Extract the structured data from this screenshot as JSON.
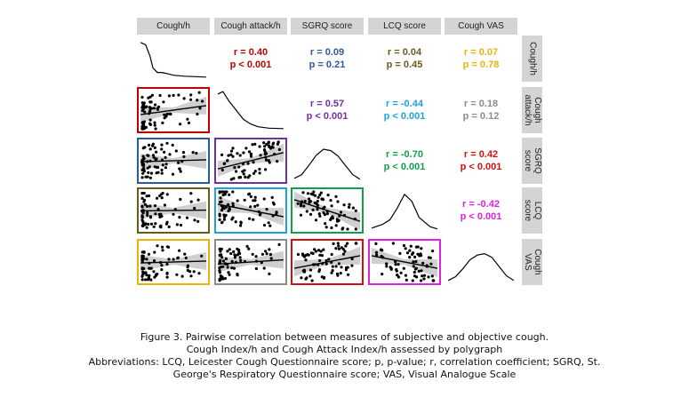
{
  "chart_data": {
    "type": "scatter",
    "variables": [
      "Cough/h",
      "Cough attack/h",
      "SGRQ score",
      "LCQ score",
      "Cough VAS"
    ],
    "row_labels": [
      "Cough/h",
      "Cough\nattack/h",
      "SGRQ\nscore",
      "LCQ\nscore",
      "Cough\nVAS"
    ],
    "correlations": [
      {
        "row": 0,
        "col": 1,
        "r": "r = 0.40",
        "p": "p < 0.001",
        "color": "#c00000"
      },
      {
        "row": 0,
        "col": 2,
        "r": "r = 0.09",
        "p": "p = 0.21",
        "color": "#2e5a9a"
      },
      {
        "row": 0,
        "col": 3,
        "r": "r = 0.04",
        "p": "p = 0.45",
        "color": "#6b5a1e"
      },
      {
        "row": 0,
        "col": 4,
        "r": "r = 0.07",
        "p": "p = 0.78",
        "color": "#e8b40a"
      },
      {
        "row": 1,
        "col": 2,
        "r": "r = 0.57",
        "p": "p < 0.001",
        "color": "#7030a0"
      },
      {
        "row": 1,
        "col": 3,
        "r": "r = -0.44",
        "p": "p < 0.001",
        "color": "#1ea3d8"
      },
      {
        "row": 1,
        "col": 4,
        "r": "r = 0.18",
        "p": "p = 0.12",
        "color": "#8c8c8c"
      },
      {
        "row": 2,
        "col": 3,
        "r": "r = -0.70",
        "p": "p < 0.001",
        "color": "#10a04a"
      },
      {
        "row": 2,
        "col": 4,
        "r": "r = 0.42",
        "p": "p < 0.001",
        "color": "#d01010"
      },
      {
        "row": 3,
        "col": 4,
        "r": "r = -0.42",
        "p": "p < 0.001",
        "color": "#e020e0"
      }
    ],
    "diagonal": "density",
    "scatter_panels": "lower-triangle with linear fit and confidence band"
  },
  "caption": {
    "line1": "Figure 3. Pairwise correlation between measures of subjective and objective cough.",
    "line2": "Cough Index/h and Cough Attack Index/h assessed by polygraph",
    "line3": "Abbreviations: LCQ, Leicester Cough Questionnaire score; p, p-value; r, correlation coefficient; SGRQ, St.",
    "line4": "George's Respiratory Questionnaire score; VAS, Visual Analogue Scale"
  }
}
